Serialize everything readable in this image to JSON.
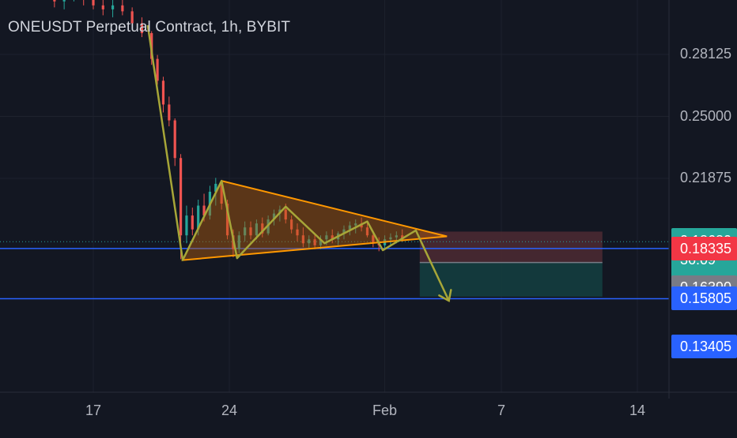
{
  "header": {
    "title": "ONEUSDT Perpetual Contract, 1h, BYBIT"
  },
  "colors": {
    "background": "#131722",
    "grid": "#1e222d",
    "bull": "#26a69a",
    "bear": "#ef5350",
    "pattern_stroke": "#ff9800",
    "pattern_fill": "#b35d0e",
    "projection_path": "#a7a638",
    "horizontal_line": "#2962ff",
    "current_price": "#26a69a",
    "stop_zone": "#4e2a33",
    "target_zone": "#143d3f"
  },
  "chart_data": {
    "type": "candlestick",
    "title": "ONEUSDT Perpetual Contract, 1h, BYBIT",
    "y_scale": "linear",
    "ylim": [
      0.134,
      0.31
    ],
    "x_tick_labels": [
      "17",
      "24",
      "Feb",
      "7",
      "14"
    ],
    "x_tick_days": [
      17,
      24,
      32,
      38,
      45
    ],
    "y_tick_labels": [
      "0.28125",
      "0.25000",
      "0.21875"
    ],
    "y_tick_values": [
      0.28125,
      0.25,
      0.21875
    ],
    "grid": true,
    "current_price": {
      "value": 0.1868,
      "label": "0.18680",
      "countdown": "36:09"
    },
    "price_labels": [
      {
        "value": 0.18335,
        "label": "0.18335",
        "color": "#f23645"
      },
      {
        "value": 0.1639,
        "label": "0.16390",
        "color": "#787b86"
      },
      {
        "value": 0.15805,
        "label": "0.15805",
        "color": "#2962ff"
      },
      {
        "value": 0.13405,
        "label": "0.13405",
        "color": "#2962ff"
      }
    ],
    "horizontal_lines": [
      0.18335,
      0.15805
    ],
    "triangle": {
      "points": [
        [
          21.6,
          0.1775
        ],
        [
          23.6,
          0.2175
        ],
        [
          35.2,
          0.1895
        ]
      ]
    },
    "zigzag": [
      [
        19.8,
        0.296
      ],
      [
        21.6,
        0.1775
      ],
      [
        23.6,
        0.2175
      ],
      [
        24.4,
        0.1785
      ],
      [
        26.9,
        0.2045
      ],
      [
        28.9,
        0.186
      ],
      [
        31.1,
        0.197
      ],
      [
        31.9,
        0.1825
      ],
      [
        33.6,
        0.1925
      ],
      [
        34.1,
        0.182
      ],
      [
        35.3,
        0.157
      ]
    ],
    "stop_zone": {
      "x": [
        33.8,
        43.2
      ],
      "y": [
        0.1763,
        0.1919
      ]
    },
    "target_zone": {
      "x": [
        33.8,
        43.2
      ],
      "y": [
        0.1591,
        0.1763
      ]
    },
    "candles_1h_approx": [
      [
        14.0,
        0.318,
        0.319,
        0.312,
        0.315
      ],
      [
        14.5,
        0.315,
        0.318,
        0.309,
        0.311
      ],
      [
        15.0,
        0.311,
        0.314,
        0.305,
        0.308
      ],
      [
        15.5,
        0.308,
        0.313,
        0.304,
        0.31
      ],
      [
        16.0,
        0.31,
        0.317,
        0.308,
        0.314
      ],
      [
        16.5,
        0.314,
        0.316,
        0.306,
        0.309
      ],
      [
        17.0,
        0.309,
        0.312,
        0.304,
        0.306
      ],
      [
        17.5,
        0.306,
        0.31,
        0.301,
        0.304
      ],
      [
        18.0,
        0.304,
        0.309,
        0.3,
        0.306
      ],
      [
        18.5,
        0.306,
        0.31,
        0.301,
        0.303
      ],
      [
        19.0,
        0.303,
        0.305,
        0.295,
        0.297
      ],
      [
        19.5,
        0.297,
        0.3,
        0.29,
        0.292
      ],
      [
        20.0,
        0.292,
        0.293,
        0.276,
        0.279
      ],
      [
        20.3,
        0.279,
        0.281,
        0.266,
        0.268
      ],
      [
        20.6,
        0.268,
        0.27,
        0.252,
        0.256
      ],
      [
        20.9,
        0.256,
        0.26,
        0.245,
        0.248
      ],
      [
        21.2,
        0.248,
        0.249,
        0.225,
        0.229
      ],
      [
        21.5,
        0.229,
        0.231,
        0.178,
        0.19
      ],
      [
        21.8,
        0.19,
        0.205,
        0.186,
        0.2
      ],
      [
        22.1,
        0.2,
        0.204,
        0.19,
        0.193
      ],
      [
        22.4,
        0.193,
        0.208,
        0.19,
        0.205
      ],
      [
        22.7,
        0.205,
        0.211,
        0.197,
        0.2
      ],
      [
        23.0,
        0.2,
        0.215,
        0.198,
        0.212
      ],
      [
        23.3,
        0.212,
        0.219,
        0.205,
        0.216
      ],
      [
        23.6,
        0.216,
        0.218,
        0.203,
        0.206
      ],
      [
        23.9,
        0.206,
        0.208,
        0.188,
        0.19
      ],
      [
        24.2,
        0.19,
        0.193,
        0.179,
        0.183
      ],
      [
        24.5,
        0.183,
        0.192,
        0.181,
        0.19
      ],
      [
        24.8,
        0.19,
        0.197,
        0.187,
        0.194
      ],
      [
        25.1,
        0.194,
        0.197,
        0.188,
        0.19
      ],
      [
        25.4,
        0.19,
        0.198,
        0.188,
        0.196
      ],
      [
        25.7,
        0.196,
        0.199,
        0.189,
        0.191
      ],
      [
        26.0,
        0.191,
        0.2,
        0.19,
        0.198
      ],
      [
        26.3,
        0.198,
        0.203,
        0.195,
        0.201
      ],
      [
        26.6,
        0.201,
        0.205,
        0.197,
        0.203
      ],
      [
        26.9,
        0.203,
        0.206,
        0.196,
        0.198
      ],
      [
        27.2,
        0.198,
        0.2,
        0.191,
        0.193
      ],
      [
        27.5,
        0.193,
        0.196,
        0.187,
        0.19
      ],
      [
        27.8,
        0.19,
        0.194,
        0.184,
        0.186
      ],
      [
        28.1,
        0.186,
        0.19,
        0.183,
        0.188
      ],
      [
        28.4,
        0.188,
        0.191,
        0.183,
        0.185
      ],
      [
        28.7,
        0.185,
        0.19,
        0.183,
        0.188
      ],
      [
        29.0,
        0.188,
        0.192,
        0.185,
        0.19
      ],
      [
        29.3,
        0.19,
        0.193,
        0.186,
        0.188
      ],
      [
        29.6,
        0.188,
        0.192,
        0.185,
        0.191
      ],
      [
        29.9,
        0.191,
        0.195,
        0.188,
        0.193
      ],
      [
        30.2,
        0.193,
        0.197,
        0.19,
        0.195
      ],
      [
        30.5,
        0.195,
        0.198,
        0.191,
        0.196
      ],
      [
        30.8,
        0.196,
        0.199,
        0.192,
        0.194
      ],
      [
        31.1,
        0.194,
        0.197,
        0.189,
        0.19
      ],
      [
        31.4,
        0.19,
        0.192,
        0.184,
        0.186
      ],
      [
        31.7,
        0.186,
        0.189,
        0.182,
        0.185
      ],
      [
        32.0,
        0.185,
        0.19,
        0.183,
        0.188
      ],
      [
        32.3,
        0.188,
        0.191,
        0.185,
        0.189
      ],
      [
        32.6,
        0.189,
        0.192,
        0.186,
        0.19
      ],
      [
        32.9,
        0.19,
        0.193,
        0.187,
        0.188
      ]
    ]
  }
}
